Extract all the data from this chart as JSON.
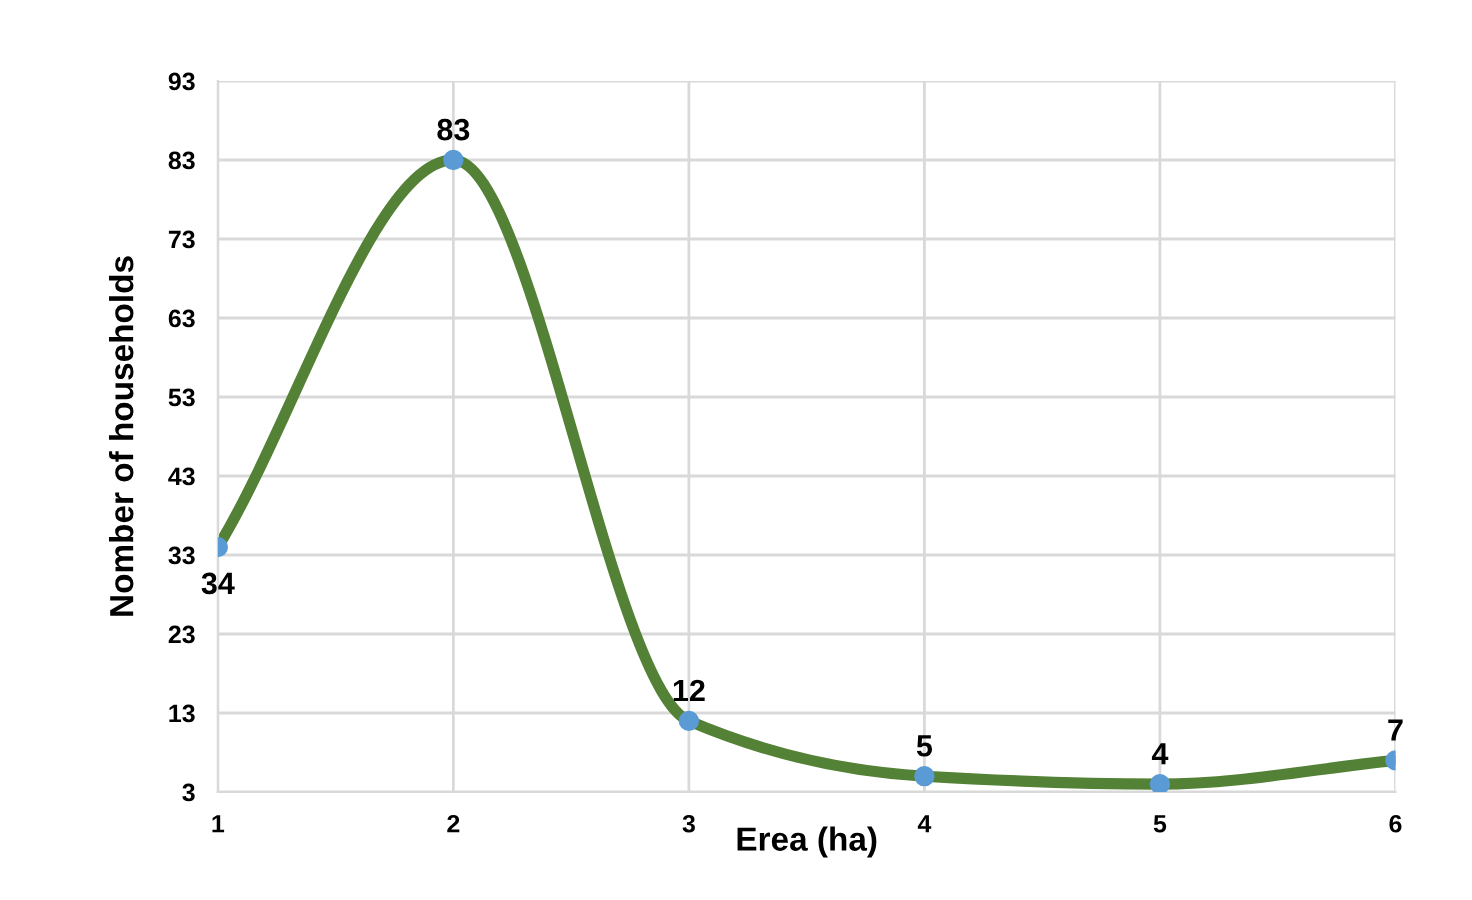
{
  "chart_data": {
    "type": "line",
    "xlabel": "Erea (ha)",
    "ylabel": "Nomber of households",
    "x": [
      1,
      2,
      3,
      4,
      5,
      6
    ],
    "series": [
      {
        "color": "#538135",
        "colors": [
          "#5b9bd5",
          "#5b9bd5",
          "#5b9bd5",
          "#5b9bd5",
          "#5b9bd5",
          "#5b9bd5"
        ],
        "values": [
          34,
          83,
          12,
          5,
          4,
          7
        ]
      }
    ],
    "marker": "circle",
    "xlim": [
      1,
      6
    ],
    "xticks": [
      1,
      2,
      3,
      4,
      5,
      6
    ],
    "ylim": [
      3,
      93
    ],
    "yticks": [
      3,
      13,
      23,
      33,
      43,
      53,
      63,
      73,
      83,
      93
    ],
    "grid": true,
    "data_labels": true
  }
}
